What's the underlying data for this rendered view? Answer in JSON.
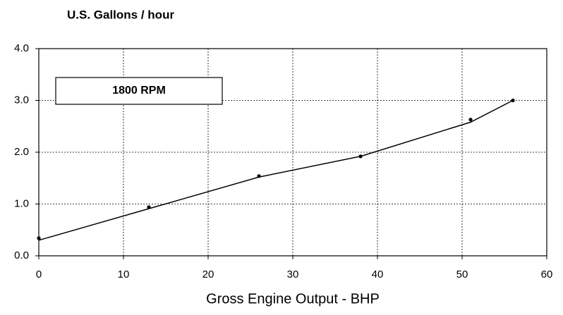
{
  "chart_data": {
    "type": "line",
    "title": "U.S. Gallons / hour",
    "xlabel": "Gross Engine Output - BHP",
    "annotation": "1800 RPM",
    "x": [
      0,
      13,
      26,
      38,
      51,
      56
    ],
    "series": [
      {
        "color": "#000000",
        "mode": "markers",
        "values": [
          0.34,
          0.94,
          1.54,
          1.92,
          2.63,
          3.0
        ]
      },
      {
        "color": "#000000",
        "mode": "line",
        "values": [
          0.3,
          0.91,
          1.52,
          1.92,
          2.58,
          3.0
        ]
      }
    ],
    "xlim": [
      0,
      60
    ],
    "xticks": [
      0,
      10,
      20,
      30,
      40,
      50,
      60
    ],
    "ylim": [
      0,
      4
    ],
    "yticks": [
      {
        "value": 0,
        "label": "0.0"
      },
      {
        "value": 1,
        "label": "1.0"
      },
      {
        "value": 2,
        "label": "2.0"
      },
      {
        "value": 3,
        "label": "3.0"
      },
      {
        "value": 4,
        "label": "4.0"
      }
    ],
    "grid": true
  }
}
